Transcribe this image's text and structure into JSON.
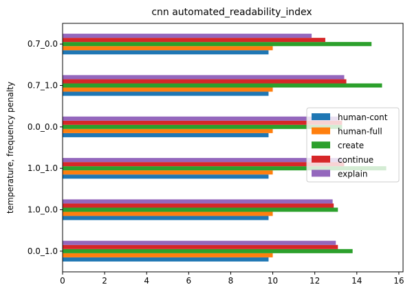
{
  "chart_data": {
    "type": "bar",
    "orientation": "horizontal",
    "title": "cnn automated_readability_index",
    "ylabel": "temperature, frequency penalty",
    "xlabel": "",
    "xlim": [
      0,
      16.2
    ],
    "xticks": [
      0,
      2,
      4,
      6,
      8,
      10,
      12,
      14,
      16
    ],
    "categories": [
      "0.0_1.0",
      "1.0_0.0",
      "1.0_1.0",
      "0.0_0.0",
      "0.7_1.0",
      "0.7_0.0"
    ],
    "series": [
      {
        "name": "human-cont",
        "color": "#1f77b4",
        "values": [
          9.8,
          9.8,
          9.8,
          9.8,
          9.8,
          9.8
        ]
      },
      {
        "name": "human-full",
        "color": "#ff7f0e",
        "values": [
          10.0,
          10.0,
          10.0,
          10.0,
          10.0,
          10.0
        ]
      },
      {
        "name": "create",
        "color": "#2ca02c",
        "values": [
          13.8,
          13.1,
          15.4,
          13.3,
          15.2,
          14.7
        ]
      },
      {
        "name": "continue",
        "color": "#d62728",
        "values": [
          13.1,
          12.9,
          13.4,
          13.3,
          13.5,
          12.5
        ]
      },
      {
        "name": "explain",
        "color": "#9467bd",
        "values": [
          13.0,
          12.85,
          13.3,
          13.1,
          13.4,
          11.85
        ]
      }
    ],
    "legend_position": "center-right",
    "grid": false
  }
}
